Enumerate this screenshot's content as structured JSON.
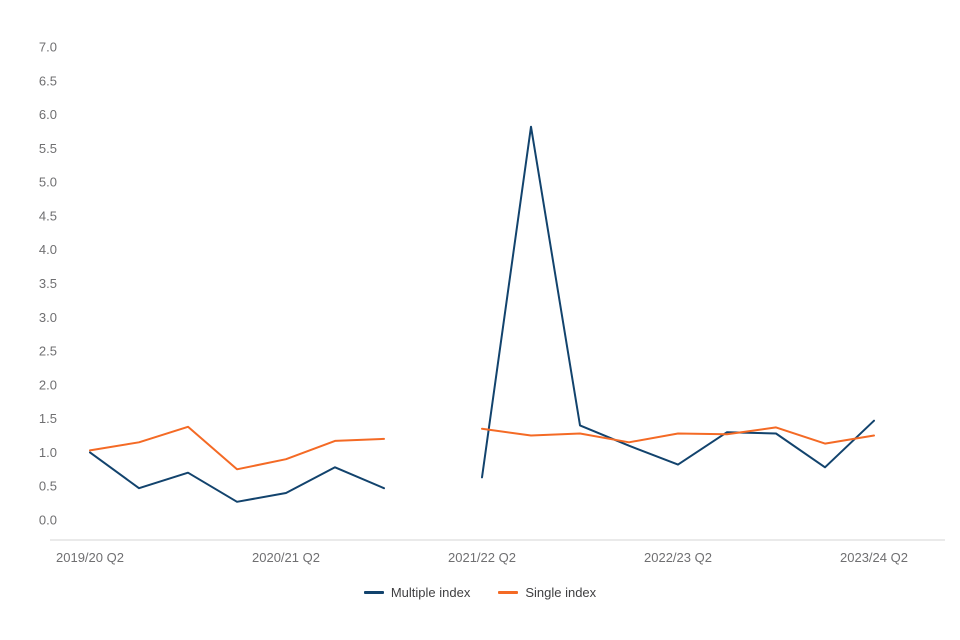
{
  "chart_data": {
    "type": "line",
    "title": "",
    "xlabel": "",
    "ylabel": "",
    "grid": false,
    "legend_position": "bottom",
    "background_color": "#ffffff",
    "axis_line_color": "#d6d6d6",
    "tick_label_color": "#6f6f71",
    "y_axis": {
      "min": 0,
      "max": 7,
      "step": 0.5,
      "tick_labels": [
        "0.0",
        "0.5",
        "1.0",
        "1.5",
        "2.0",
        "2.5",
        "3.0",
        "3.5",
        "4.0",
        "4.5",
        "5.0",
        "5.5",
        "6.0",
        "6.5",
        "7.0"
      ]
    },
    "x_axis": {
      "point_count": 17,
      "tick_labels": [
        {
          "label": "2019/20 Q2",
          "index": 0
        },
        {
          "label": "2020/21 Q2",
          "index": 4
        },
        {
          "label": "2021/22 Q2",
          "index": 8
        },
        {
          "label": "2022/23 Q2",
          "index": 12
        },
        {
          "label": "2023/24 Q2",
          "index": 16
        }
      ]
    },
    "series": [
      {
        "name": "Multiple index",
        "color": "#12436D",
        "values": [
          1.0,
          0.47,
          0.7,
          0.27,
          0.4,
          0.78,
          0.47,
          null,
          0.63,
          5.82,
          1.4,
          1.1,
          0.82,
          1.3,
          1.28,
          0.78,
          1.47
        ]
      },
      {
        "name": "Single index",
        "color": "#F46A25",
        "values": [
          1.03,
          1.15,
          1.38,
          0.75,
          0.9,
          1.17,
          1.2,
          null,
          1.35,
          1.25,
          1.28,
          1.15,
          1.28,
          1.27,
          1.37,
          1.13,
          1.25
        ]
      }
    ]
  }
}
